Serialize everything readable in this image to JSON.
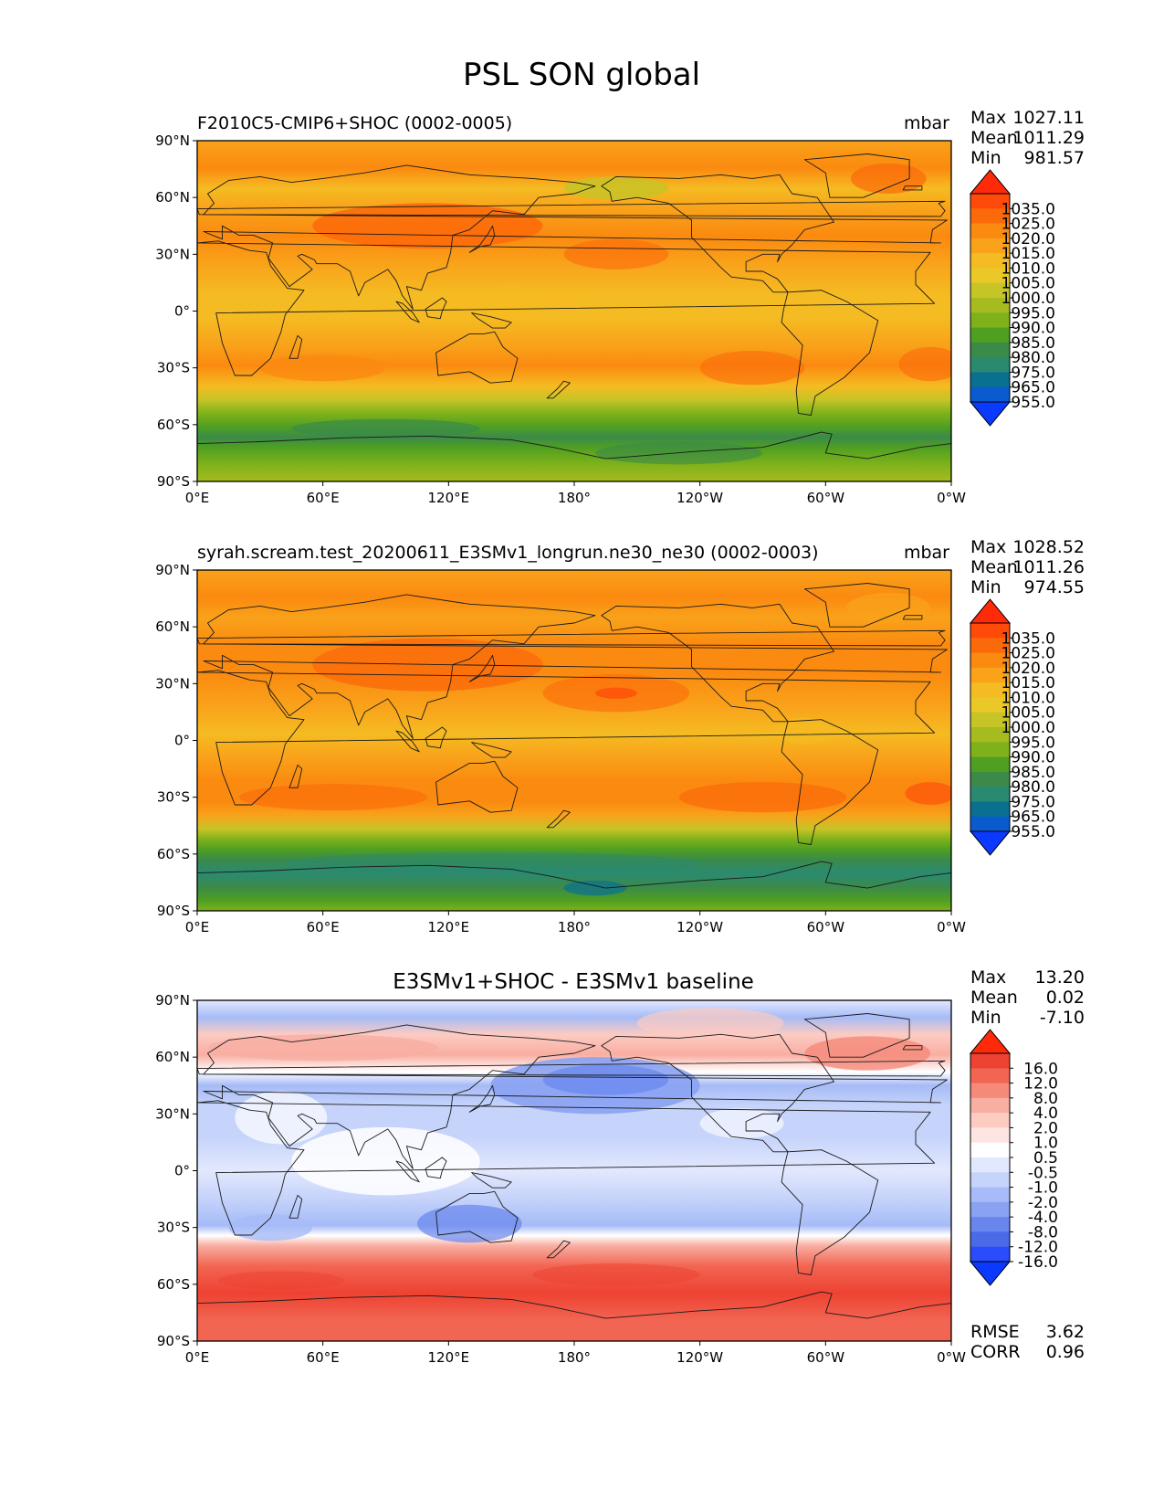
{
  "figure_title": "PSL SON global",
  "axes": {
    "lat_ticks": [
      "90°N",
      "60°N",
      "30°N",
      "0°",
      "30°S",
      "60°S",
      "90°S"
    ],
    "lon_ticks": [
      "0°E",
      "60°E",
      "120°E",
      "180°",
      "120°W",
      "60°W",
      "0°W"
    ]
  },
  "panels": [
    {
      "title": "F2010C5-CMIP6+SHOC (0002-0005)",
      "units": "mbar",
      "stats": [
        {
          "label": "Max",
          "value": "1027.11"
        },
        {
          "label": "Mean",
          "value": "1011.29"
        },
        {
          "label": "Min",
          "value": "981.57"
        }
      ]
    },
    {
      "title": "syrah.scream.test_20200611_E3SMv1_longrun.ne30_ne30 (0002-0003)",
      "units": "mbar",
      "stats": [
        {
          "label": "Max",
          "value": "1028.52"
        },
        {
          "label": "Mean",
          "value": "1011.26"
        },
        {
          "label": "Min",
          "value": "974.55"
        }
      ]
    },
    {
      "title": "E3SMv1+SHOC - E3SMv1 baseline",
      "units": "",
      "stats": [
        {
          "label": "Max",
          "value": "13.20"
        },
        {
          "label": "Mean",
          "value": "0.02"
        },
        {
          "label": "Min",
          "value": "-7.10"
        }
      ],
      "extra_stats": [
        {
          "label": "RMSE",
          "value": "3.62"
        },
        {
          "label": "CORR",
          "value": "0.96"
        }
      ]
    }
  ],
  "colorbars": {
    "absolute": {
      "labels": [
        "1035.0",
        "1025.0",
        "1020.0",
        "1015.0",
        "1010.0",
        "1005.0",
        "1000.0",
        "995.0",
        "990.0",
        "985.0",
        "980.0",
        "975.0",
        "965.0",
        "955.0"
      ],
      "colors": [
        "#ff2a0a",
        "#ff4a0a",
        "#fb6a0a",
        "#fb8a10",
        "#f9a21a",
        "#f5bb22",
        "#e9c827",
        "#c6c427",
        "#a6bb20",
        "#7fb21a",
        "#4f9f22",
        "#3b8a4a",
        "#2a8a70",
        "#0a7090",
        "#0a5ad0",
        "#0a3aff"
      ]
    },
    "difference": {
      "labels": [
        "16.0",
        "12.0",
        "8.0",
        "4.0",
        "2.0",
        "1.0",
        "0.5",
        "-0.5",
        "-1.0",
        "-2.0",
        "-4.0",
        "-8.0",
        "-12.0",
        "-16.0"
      ],
      "colors": [
        "#ff2a0a",
        "#ee4232",
        "#f26552",
        "#f58a7a",
        "#f9aea2",
        "#fccbc2",
        "#fde6e2",
        "#ffffff",
        "#e2e8fd",
        "#c6d4fb",
        "#a6bbf7",
        "#8aa2f2",
        "#6886ee",
        "#4a6ae8",
        "#2a4cfa",
        "#0a3aff"
      ]
    }
  },
  "chart_data": [
    {
      "type": "heatmap",
      "title": "F2010C5-CMIP6+SHOC (0002-0005)",
      "variable": "PSL",
      "season": "SON",
      "units": "mbar",
      "xlabel": "",
      "ylabel": "",
      "xlim": [
        0,
        360
      ],
      "ylim": [
        -90,
        90
      ],
      "colorbar_levels": [
        955,
        965,
        975,
        980,
        985,
        990,
        995,
        1000,
        1005,
        1010,
        1015,
        1020,
        1025,
        1035
      ],
      "stats": {
        "max": 1027.11,
        "mean": 1011.29,
        "min": 981.57
      },
      "zonal_mean_approx": [
        {
          "lat": 75,
          "value": 1014
        },
        {
          "lat": 60,
          "value": 1011
        },
        {
          "lat": 45,
          "value": 1017
        },
        {
          "lat": 30,
          "value": 1016
        },
        {
          "lat": 15,
          "value": 1012
        },
        {
          "lat": 0,
          "value": 1010
        },
        {
          "lat": -15,
          "value": 1012
        },
        {
          "lat": -30,
          "value": 1018
        },
        {
          "lat": -45,
          "value": 1008
        },
        {
          "lat": -55,
          "value": 996
        },
        {
          "lat": -62,
          "value": 988
        },
        {
          "lat": -70,
          "value": 990
        },
        {
          "lat": -80,
          "value": 996
        },
        {
          "lat": -88,
          "value": 1003
        }
      ]
    },
    {
      "type": "heatmap",
      "title": "syrah.scream.test_20200611_E3SMv1_longrun.ne30_ne30 (0002-0003)",
      "variable": "PSL",
      "season": "SON",
      "units": "mbar",
      "xlim": [
        0,
        360
      ],
      "ylim": [
        -90,
        90
      ],
      "colorbar_levels": [
        955,
        965,
        975,
        980,
        985,
        990,
        995,
        1000,
        1005,
        1010,
        1015,
        1020,
        1025,
        1035
      ],
      "stats": {
        "max": 1028.52,
        "mean": 1011.26,
        "min": 974.55
      },
      "zonal_mean_approx": [
        {
          "lat": 75,
          "value": 1013
        },
        {
          "lat": 60,
          "value": 1014
        },
        {
          "lat": 45,
          "value": 1018
        },
        {
          "lat": 30,
          "value": 1017
        },
        {
          "lat": 15,
          "value": 1013
        },
        {
          "lat": 0,
          "value": 1011
        },
        {
          "lat": -15,
          "value": 1013
        },
        {
          "lat": -30,
          "value": 1019
        },
        {
          "lat": -45,
          "value": 1005
        },
        {
          "lat": -55,
          "value": 990
        },
        {
          "lat": -62,
          "value": 982
        },
        {
          "lat": -70,
          "value": 984
        },
        {
          "lat": -80,
          "value": 990
        },
        {
          "lat": -88,
          "value": 998
        }
      ]
    },
    {
      "type": "heatmap",
      "title": "E3SMv1+SHOC - E3SMv1 baseline",
      "variable": "PSL difference",
      "season": "SON",
      "xlim": [
        0,
        360
      ],
      "ylim": [
        -90,
        90
      ],
      "colorbar_levels": [
        -16,
        -12,
        -8,
        -4,
        -2,
        -1,
        -0.5,
        0.5,
        1,
        2,
        4,
        8,
        12,
        16
      ],
      "stats": {
        "max": 13.2,
        "mean": 0.02,
        "min": -7.1,
        "rmse": 3.62,
        "corr": 0.96
      },
      "zonal_mean_approx": [
        {
          "lat": 85,
          "value": -1
        },
        {
          "lat": 75,
          "value": -2
        },
        {
          "lat": 60,
          "value": 3
        },
        {
          "lat": 45,
          "value": -1
        },
        {
          "lat": 30,
          "value": -3
        },
        {
          "lat": 15,
          "value": -2
        },
        {
          "lat": 0,
          "value": -1.5
        },
        {
          "lat": -15,
          "value": -2
        },
        {
          "lat": -30,
          "value": -3
        },
        {
          "lat": -45,
          "value": 4
        },
        {
          "lat": -60,
          "value": 6
        },
        {
          "lat": -75,
          "value": 5
        },
        {
          "lat": -88,
          "value": 4
        }
      ]
    }
  ]
}
